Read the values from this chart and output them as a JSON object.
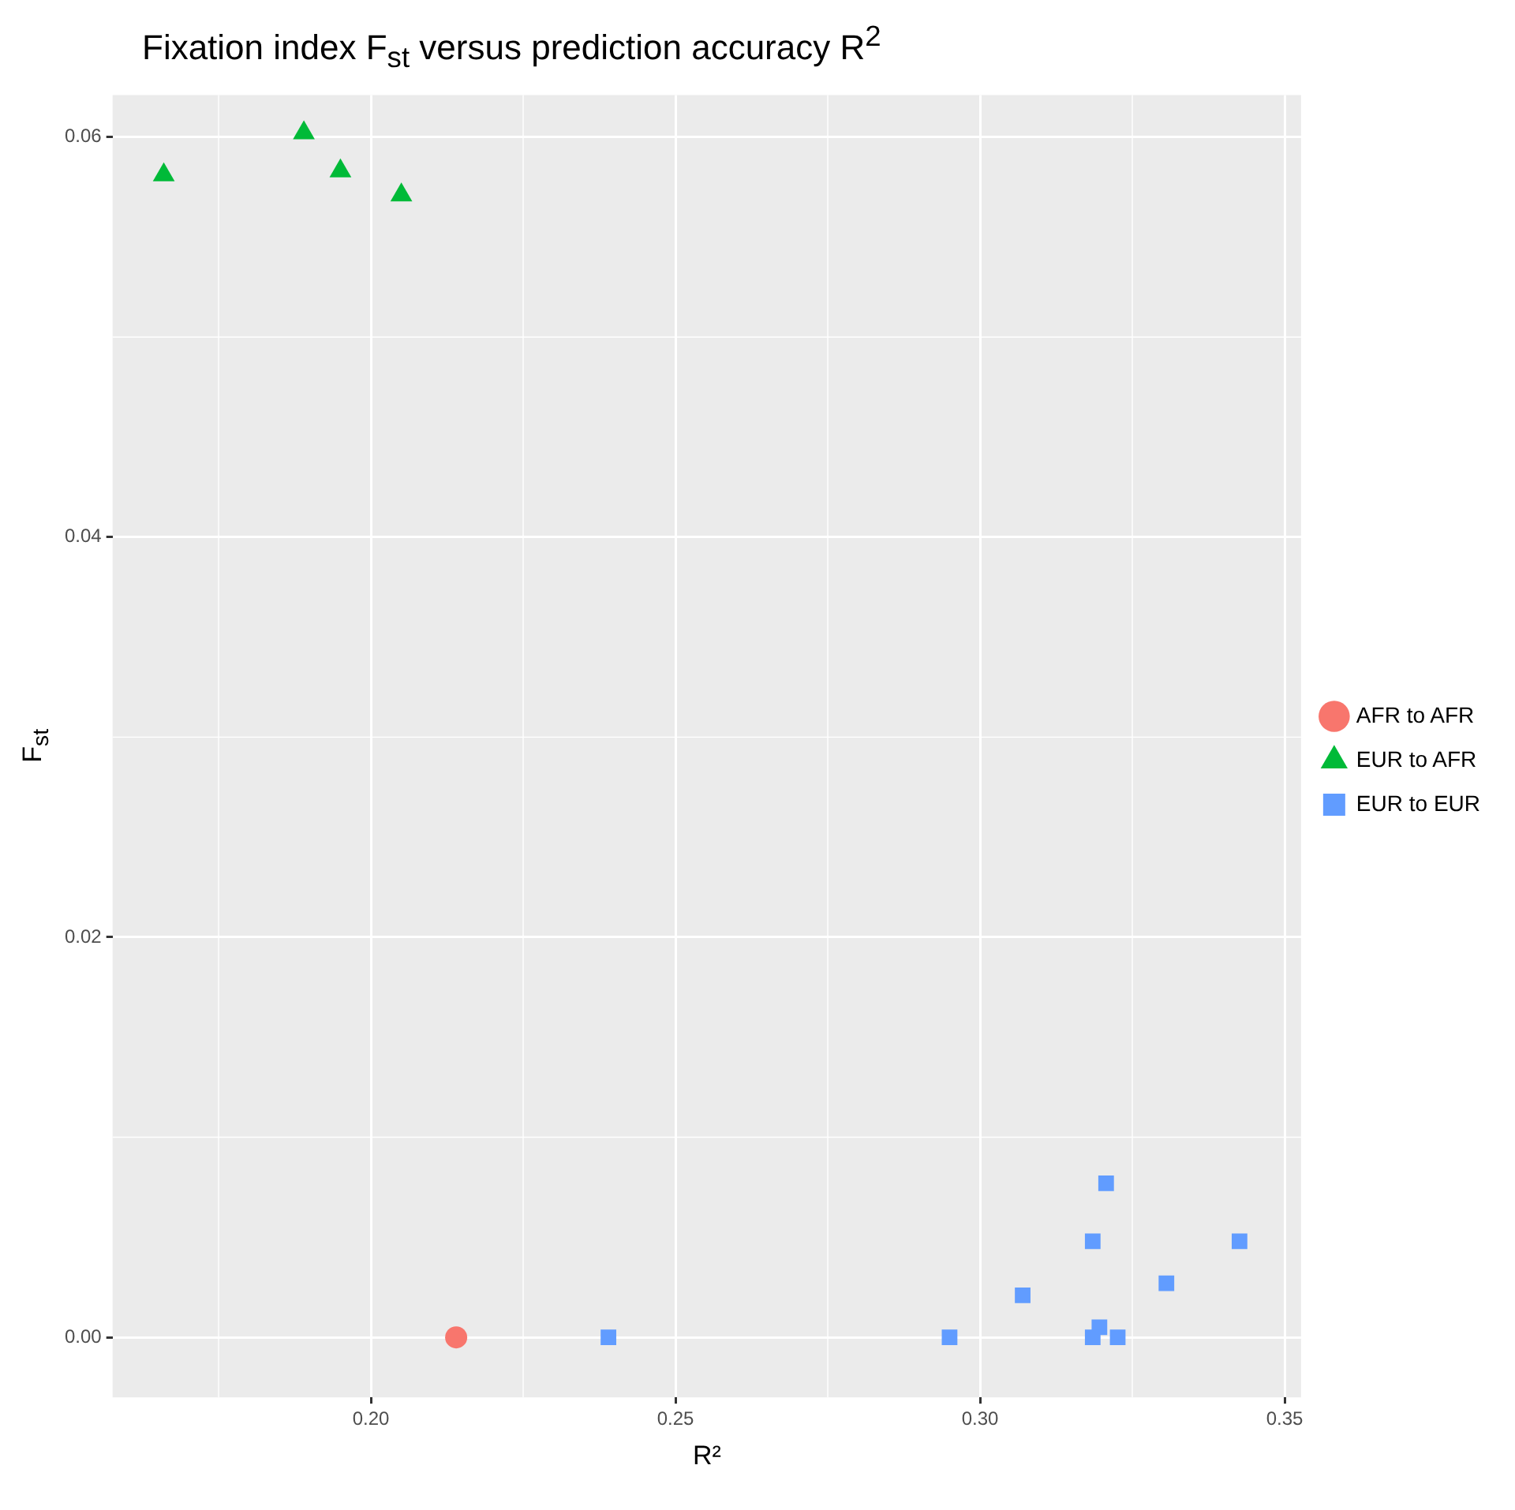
{
  "chart_data": {
    "type": "scatter",
    "title": "Fixation index F$_{st}$ versus prediction accuracy R$^{2}$",
    "xlabel": "R²",
    "ylabel": "F$_{st}$",
    "xlim": [
      0.1576,
      0.3527
    ],
    "xticks": [
      {
        "value": 0.2,
        "label": "0.20"
      },
      {
        "value": 0.25,
        "label": "0.25"
      },
      {
        "value": 0.3,
        "label": "0.30"
      },
      {
        "value": 0.35,
        "label": "0.35"
      }
    ],
    "ylim": [
      -0.003,
      0.0621
    ],
    "yticks": [
      {
        "value": 0,
        "label": "0.00"
      },
      {
        "value": 0.02,
        "label": "0.02"
      },
      {
        "value": 0.04,
        "label": "0.04"
      },
      {
        "value": 0.06,
        "label": "0.06"
      }
    ],
    "grid": true,
    "legend": "right",
    "series": [
      {
        "name": "AFR to AFR",
        "color": "#f8766d",
        "marker": "circle",
        "x": [
          0.214
        ],
        "values": [
          0
        ]
      },
      {
        "name": "EUR to AFR",
        "color": "#00ba38",
        "marker": "triangle",
        "x": [
          0.166,
          0.189,
          0.195,
          0.205
        ],
        "values": [
          0.0581,
          0.0602,
          0.0583,
          0.0571
        ]
      },
      {
        "name": "EUR to EUR",
        "color": "#619cff",
        "marker": "square",
        "x": [
          0.239,
          0.295,
          0.307,
          0.3185,
          0.3207,
          0.3196,
          0.3185,
          0.3226,
          0.3306,
          0.3426
        ],
        "values": [
          0,
          0,
          0.0021,
          0.0048,
          0.0077,
          0.0005,
          0,
          0,
          0.0027,
          0.0048
        ]
      }
    ]
  }
}
